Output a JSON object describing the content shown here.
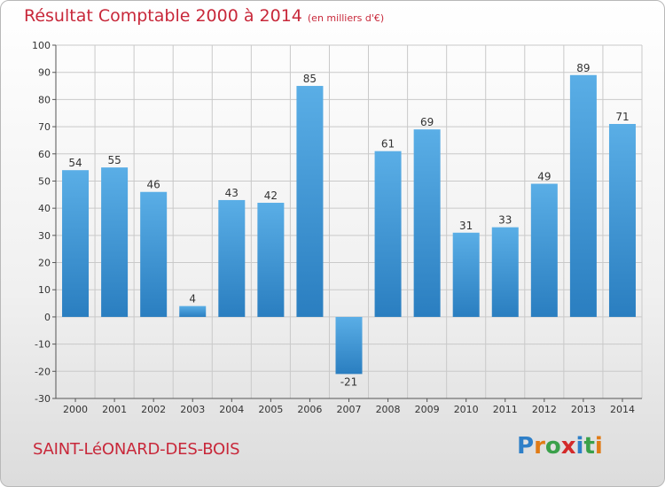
{
  "header": {
    "title": "Résultat Comptable 2000 à 2014",
    "unit": "(en milliers d'€)"
  },
  "footer": {
    "commune": "SAINT-LéONARD-DES-BOIS",
    "logo_letters": [
      "P",
      "r",
      "o",
      "x",
      "i",
      "t",
      "i"
    ],
    "logo_colors": [
      "#2e7fc8",
      "#e07b16",
      "#3aa04a",
      "#d32a2a",
      "#2e7fc8",
      "#3aa04a",
      "#e07b16"
    ]
  },
  "colors": {
    "bar_light": "#5aaee6",
    "bar_dark": "#2a7ec0",
    "grid": "#c9c9c9",
    "title": "#c8283a"
  },
  "chart_data": {
    "type": "bar",
    "categories": [
      "2000",
      "2001",
      "2002",
      "2003",
      "2004",
      "2005",
      "2006",
      "2007",
      "2008",
      "2009",
      "2010",
      "2011",
      "2012",
      "2013",
      "2014"
    ],
    "values": [
      54,
      55,
      46,
      4,
      43,
      42,
      85,
      -21,
      61,
      69,
      31,
      33,
      49,
      89,
      71
    ],
    "ylim": [
      -30,
      100
    ],
    "yticks": [
      -30,
      -20,
      -10,
      0,
      10,
      20,
      30,
      40,
      50,
      60,
      70,
      80,
      90,
      100
    ],
    "grid": true
  }
}
